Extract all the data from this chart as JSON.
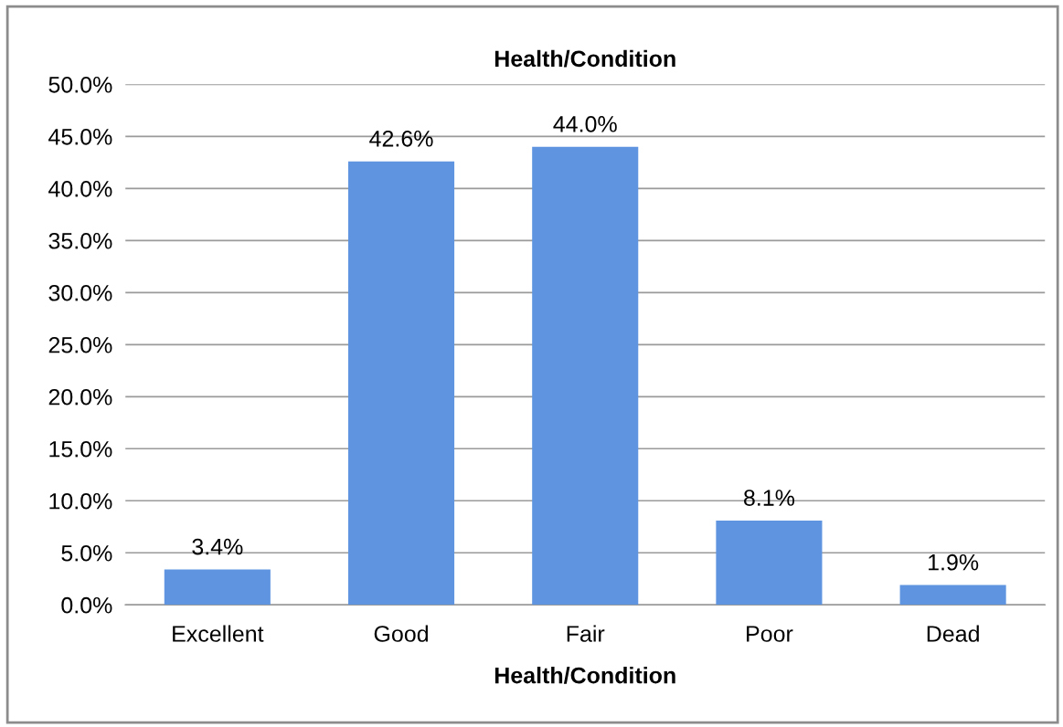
{
  "chart_data": {
    "type": "bar",
    "title": "Health/Condition",
    "xlabel": "Health/Condition",
    "categories": [
      "Excellent",
      "Good",
      "Fair",
      "Poor",
      "Dead"
    ],
    "values": [
      3.4,
      42.6,
      44.0,
      8.1,
      1.9
    ],
    "value_labels": [
      "3.4%",
      "42.6%",
      "44.0%",
      "8.1%",
      "1.9%"
    ],
    "color": "#5f95e0",
    "ylim": [
      0,
      50
    ],
    "yticks": [
      {
        "value": 0,
        "label": "0.0%"
      },
      {
        "value": 5,
        "label": "5.0%"
      },
      {
        "value": 10,
        "label": "10.0%"
      },
      {
        "value": 15,
        "label": "15.0%"
      },
      {
        "value": 20,
        "label": "20.0%"
      },
      {
        "value": 25,
        "label": "25.0%"
      },
      {
        "value": 30,
        "label": "30.0%"
      },
      {
        "value": 35,
        "label": "35.0%"
      },
      {
        "value": 40,
        "label": "40.0%"
      },
      {
        "value": 45,
        "label": "45.0%"
      },
      {
        "value": 50,
        "label": "50.0%"
      }
    ],
    "grid": "y"
  }
}
